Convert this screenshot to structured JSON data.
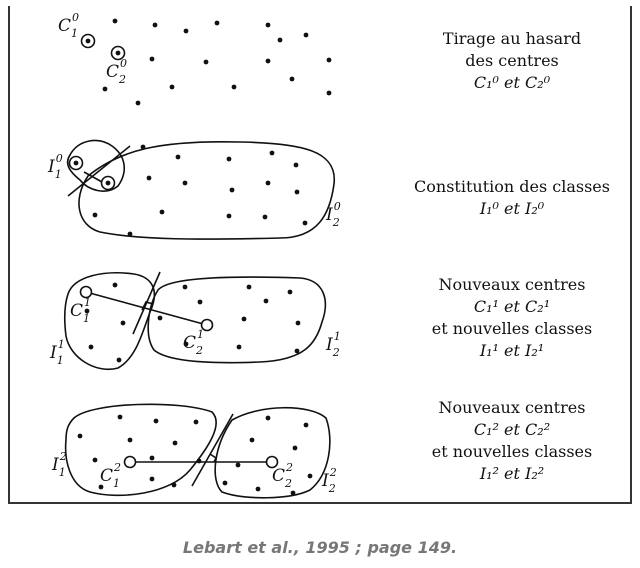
{
  "panels": [
    {
      "desc_lines": [
        "Tirage au hasard",
        "des centres",
        "C₁⁰ et C₂⁰"
      ],
      "labels": {
        "c1": "C",
        "c1_sub": "1",
        "c1_sup": "0",
        "c2": "C",
        "c2_sub": "2",
        "c2_sup": "0"
      }
    },
    {
      "desc_lines": [
        "Constitution des classes",
        "I₁⁰ et I₂⁰"
      ],
      "labels": {
        "i1": "I",
        "i1_sub": "1",
        "i1_sup": "0",
        "i2": "I",
        "i2_sub": "2",
        "i2_sup": "0"
      }
    },
    {
      "desc_lines": [
        "Nouveaux centres",
        "C₁¹ et C₂¹",
        "et nouvelles classes",
        "I₁¹ et I₂¹"
      ],
      "labels": {
        "c1": "C",
        "c1_sub": "1",
        "c1_sup": "1",
        "c2": "C",
        "c2_sub": "2",
        "c2_sup": "1",
        "i1": "I",
        "i1_sub": "1",
        "i1_sup": "1",
        "i2": "I",
        "i2_sub": "2",
        "i2_sup": "1"
      }
    },
    {
      "desc_lines": [
        "Nouveaux centres",
        "C₁² et C₂²",
        "et nouvelles classes",
        "I₁² et I₂²"
      ],
      "labels": {
        "c1": "C",
        "c1_sub": "1",
        "c1_sup": "2",
        "c2": "C",
        "c2_sub": "2",
        "c2_sup": "2",
        "i1": "I",
        "i1_sub": "1",
        "i1_sup": "2",
        "i2": "I",
        "i2_sub": "2",
        "i2_sup": "2"
      }
    }
  ],
  "caption": "Lebart et al., 1995 ; page 149.",
  "colors": {
    "ink": "#111111",
    "caption": "#777777",
    "frame": "#333333"
  }
}
